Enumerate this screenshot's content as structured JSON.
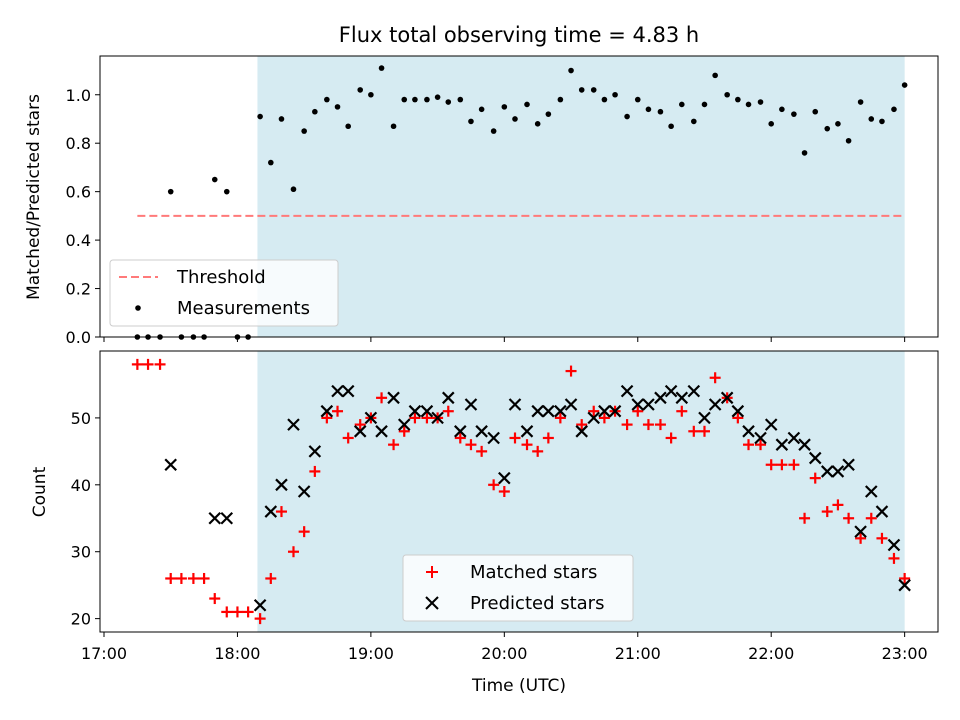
{
  "chart_data": [
    {
      "type": "scatter",
      "title": "Flux total observing time = 4.83 h",
      "xlabel": "",
      "ylabel": "Matched/Predicted stars",
      "xlim": [
        16.97,
        23.25
      ],
      "ylim": [
        0,
        1.16
      ],
      "yticks": [
        0.0,
        0.2,
        0.4,
        0.6,
        0.8,
        1.0
      ],
      "ytick_labels": [
        "0.0",
        "0.2",
        "0.4",
        "0.6",
        "0.8",
        "1.0"
      ],
      "shaded_region": [
        18.15,
        23.0
      ],
      "threshold": {
        "name": "Threshold",
        "y": 0.5,
        "x_range": [
          17.25,
          22.98
        ],
        "color": "#ff7a7a"
      },
      "legend": [
        "Threshold",
        "Measurements"
      ],
      "legend_position": "lower-left",
      "series": [
        {
          "name": "Measurements",
          "x": [
            17.25,
            17.33,
            17.42,
            17.5,
            17.58,
            17.67,
            17.75,
            17.83,
            17.92,
            18.0,
            18.08,
            18.17,
            18.25,
            18.33,
            18.42,
            18.5,
            18.58,
            18.67,
            18.75,
            18.83,
            18.92,
            19.0,
            19.08,
            19.17,
            19.25,
            19.33,
            19.42,
            19.5,
            19.58,
            19.67,
            19.75,
            19.83,
            19.92,
            20.0,
            20.08,
            20.17,
            20.25,
            20.33,
            20.42,
            20.5,
            20.58,
            20.67,
            20.75,
            20.83,
            20.92,
            21.0,
            21.08,
            21.17,
            21.25,
            21.33,
            21.42,
            21.5,
            21.58,
            21.67,
            21.75,
            21.83,
            21.92,
            22.0,
            22.08,
            22.17,
            22.25,
            22.33,
            22.42,
            22.5,
            22.58,
            22.67,
            22.75,
            22.83,
            22.92,
            23.0
          ],
          "y": [
            0.0,
            0.0,
            0.0,
            0.6,
            0.0,
            0.0,
            0.0,
            0.65,
            0.6,
            0.0,
            0.0,
            0.91,
            0.72,
            0.9,
            0.61,
            0.85,
            0.93,
            0.98,
            0.95,
            0.87,
            1.02,
            1.0,
            1.11,
            0.87,
            0.98,
            0.98,
            0.98,
            0.99,
            0.97,
            0.98,
            0.89,
            0.94,
            0.85,
            0.95,
            0.9,
            0.96,
            0.88,
            0.92,
            0.98,
            1.1,
            1.02,
            1.02,
            0.98,
            1.0,
            0.91,
            0.98,
            0.94,
            0.93,
            0.87,
            0.96,
            0.89,
            0.96,
            1.08,
            1.0,
            0.98,
            0.96,
            0.97,
            0.88,
            0.94,
            0.92,
            0.76,
            0.93,
            0.86,
            0.88,
            0.81,
            0.97,
            0.9,
            0.89,
            0.94,
            1.04
          ]
        }
      ]
    },
    {
      "type": "scatter",
      "title": "",
      "xlabel": "Time (UTC)",
      "ylabel": "Count",
      "xlim": [
        16.97,
        23.25
      ],
      "ylim": [
        18,
        60
      ],
      "yticks": [
        20,
        30,
        40,
        50
      ],
      "ytick_labels": [
        "20",
        "30",
        "40",
        "50"
      ],
      "xticks": [
        17,
        18,
        19,
        20,
        21,
        22,
        23
      ],
      "xtick_labels": [
        "17:00",
        "18:00",
        "19:00",
        "20:00",
        "21:00",
        "22:00",
        "23:00"
      ],
      "shaded_region": [
        18.15,
        23.0
      ],
      "legend": [
        "Matched stars",
        "Predicted stars"
      ],
      "legend_position": "lower-center",
      "series": [
        {
          "name": "Matched stars",
          "marker": "+",
          "color": "#ff0000",
          "x": [
            17.25,
            17.33,
            17.42,
            17.5,
            17.58,
            17.67,
            17.75,
            17.83,
            17.92,
            18.0,
            18.08,
            18.17,
            18.25,
            18.33,
            18.42,
            18.5,
            18.58,
            18.67,
            18.75,
            18.83,
            18.92,
            19.0,
            19.08,
            19.17,
            19.25,
            19.33,
            19.42,
            19.5,
            19.58,
            19.67,
            19.75,
            19.83,
            19.92,
            20.0,
            20.08,
            20.17,
            20.25,
            20.33,
            20.42,
            20.5,
            20.58,
            20.67,
            20.75,
            20.83,
            20.92,
            21.0,
            21.08,
            21.17,
            21.25,
            21.33,
            21.42,
            21.5,
            21.58,
            21.67,
            21.75,
            21.83,
            21.92,
            22.0,
            22.08,
            22.17,
            22.25,
            22.33,
            22.42,
            22.5,
            22.58,
            22.67,
            22.75,
            22.83,
            22.92,
            23.0
          ],
          "y": [
            58,
            58,
            58,
            26,
            26,
            26,
            26,
            23,
            21,
            21,
            21,
            20,
            26,
            36,
            30,
            33,
            42,
            50,
            51,
            47,
            49,
            50,
            53,
            46,
            48,
            50,
            50,
            50,
            51,
            47,
            46,
            45,
            40,
            39,
            47,
            46,
            45,
            47,
            50,
            57,
            49,
            51,
            50,
            51,
            49,
            51,
            49,
            49,
            47,
            51,
            48,
            48,
            56,
            53,
            50,
            46,
            46,
            43,
            43,
            43,
            35,
            41,
            36,
            37,
            35,
            32,
            35,
            32,
            29,
            26
          ]
        },
        {
          "name": "Predicted stars",
          "marker": "x",
          "color": "#000000",
          "x": [
            17.5,
            17.83,
            17.92,
            18.17,
            18.25,
            18.33,
            18.42,
            18.5,
            18.58,
            18.67,
            18.75,
            18.83,
            18.92,
            19.0,
            19.08,
            19.17,
            19.25,
            19.33,
            19.42,
            19.5,
            19.58,
            19.67,
            19.75,
            19.83,
            19.92,
            20.0,
            20.08,
            20.17,
            20.25,
            20.33,
            20.42,
            20.5,
            20.58,
            20.67,
            20.75,
            20.83,
            20.92,
            21.0,
            21.08,
            21.17,
            21.25,
            21.33,
            21.42,
            21.5,
            21.58,
            21.67,
            21.75,
            21.83,
            21.92,
            22.0,
            22.08,
            22.17,
            22.25,
            22.33,
            22.42,
            22.5,
            22.58,
            22.67,
            22.75,
            22.83,
            22.92,
            23.0
          ],
          "y": [
            43,
            35,
            35,
            22,
            36,
            40,
            49,
            39,
            45,
            51,
            54,
            54,
            48,
            50,
            48,
            53,
            49,
            51,
            51,
            50,
            53,
            48,
            52,
            48,
            47,
            41,
            52,
            48,
            51,
            51,
            51,
            52,
            48,
            50,
            51,
            51,
            54,
            52,
            52,
            53,
            54,
            53,
            54,
            50,
            52,
            53,
            51,
            48,
            47,
            49,
            46,
            47,
            46,
            44,
            42,
            42,
            43,
            33,
            39,
            36,
            31,
            25
          ]
        }
      ]
    }
  ]
}
